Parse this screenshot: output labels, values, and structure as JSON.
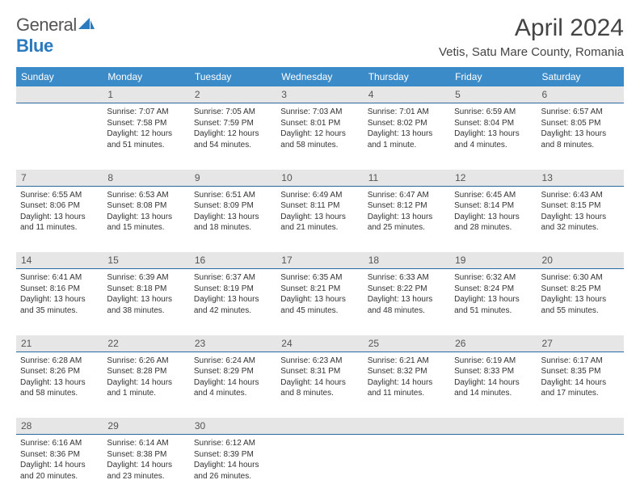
{
  "logo": {
    "text1": "General",
    "text2": "Blue"
  },
  "title": "April 2024",
  "location": "Vetis, Satu Mare County, Romania",
  "colors": {
    "header_bg": "#3b8bc9",
    "header_text": "#ffffff",
    "band_bg": "#e6e6e6",
    "rule": "#2a6aa0",
    "logo_blue": "#2a7abf"
  },
  "dow": [
    "Sunday",
    "Monday",
    "Tuesday",
    "Wednesday",
    "Thursday",
    "Friday",
    "Saturday"
  ],
  "weeks": [
    [
      {
        "n": "",
        "sr": "",
        "ss": "",
        "dl": ""
      },
      {
        "n": "1",
        "sr": "Sunrise: 7:07 AM",
        "ss": "Sunset: 7:58 PM",
        "dl": "Daylight: 12 hours and 51 minutes."
      },
      {
        "n": "2",
        "sr": "Sunrise: 7:05 AM",
        "ss": "Sunset: 7:59 PM",
        "dl": "Daylight: 12 hours and 54 minutes."
      },
      {
        "n": "3",
        "sr": "Sunrise: 7:03 AM",
        "ss": "Sunset: 8:01 PM",
        "dl": "Daylight: 12 hours and 58 minutes."
      },
      {
        "n": "4",
        "sr": "Sunrise: 7:01 AM",
        "ss": "Sunset: 8:02 PM",
        "dl": "Daylight: 13 hours and 1 minute."
      },
      {
        "n": "5",
        "sr": "Sunrise: 6:59 AM",
        "ss": "Sunset: 8:04 PM",
        "dl": "Daylight: 13 hours and 4 minutes."
      },
      {
        "n": "6",
        "sr": "Sunrise: 6:57 AM",
        "ss": "Sunset: 8:05 PM",
        "dl": "Daylight: 13 hours and 8 minutes."
      }
    ],
    [
      {
        "n": "7",
        "sr": "Sunrise: 6:55 AM",
        "ss": "Sunset: 8:06 PM",
        "dl": "Daylight: 13 hours and 11 minutes."
      },
      {
        "n": "8",
        "sr": "Sunrise: 6:53 AM",
        "ss": "Sunset: 8:08 PM",
        "dl": "Daylight: 13 hours and 15 minutes."
      },
      {
        "n": "9",
        "sr": "Sunrise: 6:51 AM",
        "ss": "Sunset: 8:09 PM",
        "dl": "Daylight: 13 hours and 18 minutes."
      },
      {
        "n": "10",
        "sr": "Sunrise: 6:49 AM",
        "ss": "Sunset: 8:11 PM",
        "dl": "Daylight: 13 hours and 21 minutes."
      },
      {
        "n": "11",
        "sr": "Sunrise: 6:47 AM",
        "ss": "Sunset: 8:12 PM",
        "dl": "Daylight: 13 hours and 25 minutes."
      },
      {
        "n": "12",
        "sr": "Sunrise: 6:45 AM",
        "ss": "Sunset: 8:14 PM",
        "dl": "Daylight: 13 hours and 28 minutes."
      },
      {
        "n": "13",
        "sr": "Sunrise: 6:43 AM",
        "ss": "Sunset: 8:15 PM",
        "dl": "Daylight: 13 hours and 32 minutes."
      }
    ],
    [
      {
        "n": "14",
        "sr": "Sunrise: 6:41 AM",
        "ss": "Sunset: 8:16 PM",
        "dl": "Daylight: 13 hours and 35 minutes."
      },
      {
        "n": "15",
        "sr": "Sunrise: 6:39 AM",
        "ss": "Sunset: 8:18 PM",
        "dl": "Daylight: 13 hours and 38 minutes."
      },
      {
        "n": "16",
        "sr": "Sunrise: 6:37 AM",
        "ss": "Sunset: 8:19 PM",
        "dl": "Daylight: 13 hours and 42 minutes."
      },
      {
        "n": "17",
        "sr": "Sunrise: 6:35 AM",
        "ss": "Sunset: 8:21 PM",
        "dl": "Daylight: 13 hours and 45 minutes."
      },
      {
        "n": "18",
        "sr": "Sunrise: 6:33 AM",
        "ss": "Sunset: 8:22 PM",
        "dl": "Daylight: 13 hours and 48 minutes."
      },
      {
        "n": "19",
        "sr": "Sunrise: 6:32 AM",
        "ss": "Sunset: 8:24 PM",
        "dl": "Daylight: 13 hours and 51 minutes."
      },
      {
        "n": "20",
        "sr": "Sunrise: 6:30 AM",
        "ss": "Sunset: 8:25 PM",
        "dl": "Daylight: 13 hours and 55 minutes."
      }
    ],
    [
      {
        "n": "21",
        "sr": "Sunrise: 6:28 AM",
        "ss": "Sunset: 8:26 PM",
        "dl": "Daylight: 13 hours and 58 minutes."
      },
      {
        "n": "22",
        "sr": "Sunrise: 6:26 AM",
        "ss": "Sunset: 8:28 PM",
        "dl": "Daylight: 14 hours and 1 minute."
      },
      {
        "n": "23",
        "sr": "Sunrise: 6:24 AM",
        "ss": "Sunset: 8:29 PM",
        "dl": "Daylight: 14 hours and 4 minutes."
      },
      {
        "n": "24",
        "sr": "Sunrise: 6:23 AM",
        "ss": "Sunset: 8:31 PM",
        "dl": "Daylight: 14 hours and 8 minutes."
      },
      {
        "n": "25",
        "sr": "Sunrise: 6:21 AM",
        "ss": "Sunset: 8:32 PM",
        "dl": "Daylight: 14 hours and 11 minutes."
      },
      {
        "n": "26",
        "sr": "Sunrise: 6:19 AM",
        "ss": "Sunset: 8:33 PM",
        "dl": "Daylight: 14 hours and 14 minutes."
      },
      {
        "n": "27",
        "sr": "Sunrise: 6:17 AM",
        "ss": "Sunset: 8:35 PM",
        "dl": "Daylight: 14 hours and 17 minutes."
      }
    ],
    [
      {
        "n": "28",
        "sr": "Sunrise: 6:16 AM",
        "ss": "Sunset: 8:36 PM",
        "dl": "Daylight: 14 hours and 20 minutes."
      },
      {
        "n": "29",
        "sr": "Sunrise: 6:14 AM",
        "ss": "Sunset: 8:38 PM",
        "dl": "Daylight: 14 hours and 23 minutes."
      },
      {
        "n": "30",
        "sr": "Sunrise: 6:12 AM",
        "ss": "Sunset: 8:39 PM",
        "dl": "Daylight: 14 hours and 26 minutes."
      },
      {
        "n": "",
        "sr": "",
        "ss": "",
        "dl": ""
      },
      {
        "n": "",
        "sr": "",
        "ss": "",
        "dl": ""
      },
      {
        "n": "",
        "sr": "",
        "ss": "",
        "dl": ""
      },
      {
        "n": "",
        "sr": "",
        "ss": "",
        "dl": ""
      }
    ]
  ]
}
